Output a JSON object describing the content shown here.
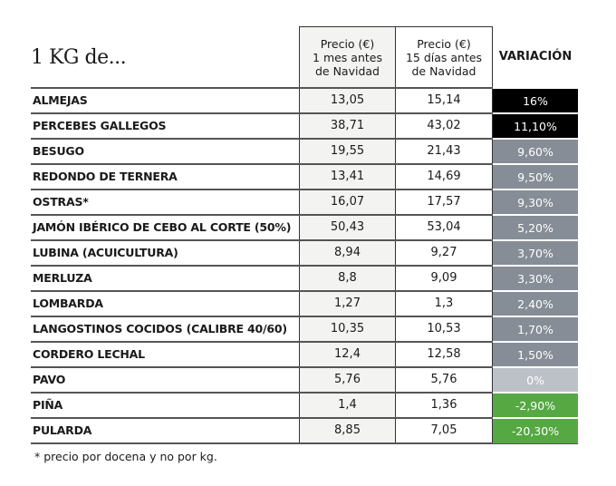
{
  "table": {
    "title": "1 KG de...",
    "headers": {
      "col1": "Precio (€)\n1 mes antes\nde Navidad",
      "col1_lines": [
        "Precio (€)",
        "1 mes antes",
        "de Navidad"
      ],
      "col2_lines": [
        "Precio (€)",
        "15 días antes",
        "de Navidad"
      ],
      "col3": "VARIACIÓN"
    },
    "colors": {
      "black": "#000000",
      "gray": "#868d96",
      "light_gray": "#bcc0c7",
      "green": "#56a843"
    },
    "rows": [
      {
        "item": "ALMEJAS",
        "price_1m": "13,05",
        "price_15d": "15,14",
        "variation": "16%",
        "color": "#000000"
      },
      {
        "item": "PERCEBES GALLEGOS",
        "price_1m": "38,71",
        "price_15d": "43,02",
        "variation": "11,10%",
        "color": "#000000"
      },
      {
        "item": "BESUGO",
        "price_1m": "19,55",
        "price_15d": "21,43",
        "variation": "9,60%",
        "color": "#868d96"
      },
      {
        "item": "REDONDO DE TERNERA",
        "price_1m": "13,41",
        "price_15d": "14,69",
        "variation": "9,50%",
        "color": "#868d96"
      },
      {
        "item": "OSTRAS*",
        "price_1m": "16,07",
        "price_15d": "17,57",
        "variation": "9,30%",
        "color": "#868d96"
      },
      {
        "item": "JAMÓN IBÉRICO DE CEBO AL CORTE (50%)",
        "price_1m": "50,43",
        "price_15d": "53,04",
        "variation": "5,20%",
        "color": "#868d96"
      },
      {
        "item": "LUBINA (ACUICULTURA)",
        "price_1m": "8,94",
        "price_15d": "9,27",
        "variation": "3,70%",
        "color": "#868d96"
      },
      {
        "item": "MERLUZA",
        "price_1m": "8,8",
        "price_15d": "9,09",
        "variation": "3,30%",
        "color": "#868d96"
      },
      {
        "item": "LOMBARDA",
        "price_1m": "1,27",
        "price_15d": "1,3",
        "variation": "2,40%",
        "color": "#868d96"
      },
      {
        "item": "LANGOSTINOS COCIDOS (CALIBRE 40/60)",
        "price_1m": "10,35",
        "price_15d": "10,53",
        "variation": "1,70%",
        "color": "#868d96"
      },
      {
        "item": "CORDERO LECHAL",
        "price_1m": "12,4",
        "price_15d": "12,58",
        "variation": "1,50%",
        "color": "#868d96"
      },
      {
        "item": "PAVO",
        "price_1m": "5,76",
        "price_15d": "5,76",
        "variation": "0%",
        "color": "#bcc0c7"
      },
      {
        "item": "PIÑA",
        "price_1m": "1,4",
        "price_15d": "1,36",
        "variation": "-2,90%",
        "color": "#56a843"
      },
      {
        "item": "PULARDA",
        "price_1m": "8,85",
        "price_15d": "7,05",
        "variation": "-20,30%",
        "color": "#56a843"
      }
    ],
    "footnote": "* precio por docena y no por kg."
  }
}
